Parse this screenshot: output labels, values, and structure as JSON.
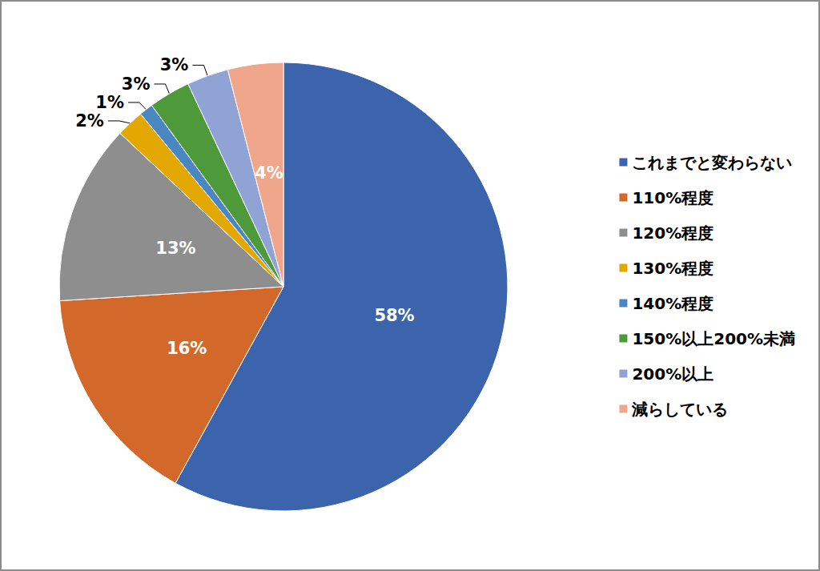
{
  "chart_data": {
    "type": "pie",
    "categories": [
      "これまでと変わらない",
      "110%程度",
      "120%程度",
      "130%程度",
      "140%程度",
      "150%以上200%未満",
      "200%以上",
      "減らしている"
    ],
    "values": [
      58,
      16,
      13,
      2,
      1,
      3,
      3,
      4
    ],
    "value_labels": [
      "58%",
      "16%",
      "13%",
      "2%",
      "1%",
      "3%",
      "3%",
      "4%"
    ],
    "colors": [
      "#3c64ac",
      "#d2692a",
      "#8e8e8e",
      "#e3a800",
      "#4a86c0",
      "#4e9a3a",
      "#8fa3d5",
      "#f0a68a"
    ],
    "data_labels": true,
    "legend": "right"
  }
}
